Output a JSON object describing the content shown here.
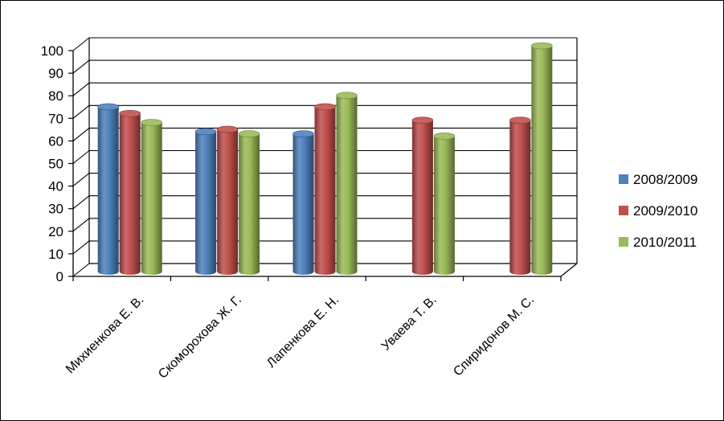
{
  "chart_data": {
    "type": "bar",
    "style": "3d-clustered-cylinder",
    "categories": [
      "Михиенкова Е. В.",
      "Скоморохова Ж. Г.",
      "Лапенкова Е. Н.",
      "Уваева Т. В.",
      "Спиридонов М. С."
    ],
    "series": [
      {
        "name": "2008/2009",
        "color": "#4f81bd",
        "values": [
          73,
          62,
          61,
          null,
          null
        ]
      },
      {
        "name": "2009/2010",
        "color": "#c0504d",
        "values": [
          70,
          63,
          73,
          67,
          67
        ]
      },
      {
        "name": "2010/2011",
        "color": "#9bbb59",
        "values": [
          66,
          61,
          78,
          60,
          100
        ]
      }
    ],
    "y_ticks": [
      "0",
      "10",
      "20",
      "30",
      "40",
      "50",
      "60",
      "70",
      "80",
      "90",
      "100"
    ],
    "ylim": [
      0,
      100
    ],
    "grid": true,
    "legend_position": "right"
  }
}
